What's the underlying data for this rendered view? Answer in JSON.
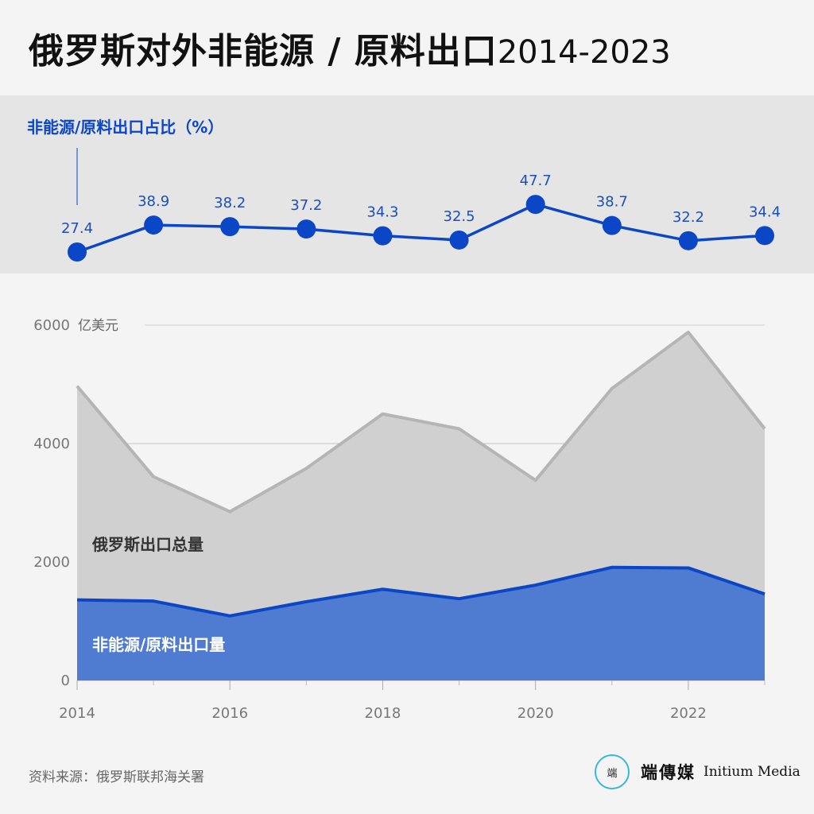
{
  "title": {
    "main": "俄罗斯对外非能源 / 原料出口",
    "years": "2014-2023"
  },
  "share_chart": {
    "label": "非能源/原料出口占比（%）"
  },
  "volume_chart": {
    "unit": "亿美元",
    "total_label": "俄罗斯出口总量",
    "nonenergy_label": "非能源/原料出口量"
  },
  "source": "资料来源：俄罗斯联邦海关署",
  "logo": {
    "mark": "端",
    "name_cn": "端傳媒",
    "name_en": "Initium Media"
  },
  "colors": {
    "line": "#0b46c7",
    "total_area": "#d0d0d0",
    "total_line": "#b5b5b5",
    "nonenergy_area": "#4f7bd1",
    "nonenergy_line": "#0b46c7"
  },
  "chart_data": [
    {
      "type": "line",
      "title": "非能源/原料出口占比（%）",
      "x": [
        2014,
        2015,
        2016,
        2017,
        2018,
        2019,
        2020,
        2021,
        2022,
        2023
      ],
      "series": [
        {
          "name": "非能源/原料出口占比",
          "values": [
            27.4,
            38.9,
            38.2,
            37.2,
            34.3,
            32.5,
            47.7,
            38.7,
            32.2,
            34.4
          ]
        }
      ],
      "ylim": [
        20,
        55
      ],
      "grid": false
    },
    {
      "type": "area",
      "x": [
        2014,
        2015,
        2016,
        2017,
        2018,
        2019,
        2020,
        2021,
        2022,
        2023
      ],
      "series": [
        {
          "name": "俄罗斯出口总量",
          "values": [
            4970,
            3440,
            2850,
            3580,
            4500,
            4250,
            3380,
            4930,
            5880,
            4250
          ]
        },
        {
          "name": "非能源/原料出口量",
          "values": [
            1360,
            1340,
            1090,
            1330,
            1540,
            1380,
            1610,
            1910,
            1900,
            1460
          ]
        }
      ],
      "yticks": [
        0,
        2000,
        4000,
        6000
      ],
      "xticks": [
        2014,
        2016,
        2018,
        2020,
        2022
      ],
      "ylim": [
        0,
        6000
      ],
      "ylabel": "亿美元",
      "grid": true
    }
  ]
}
